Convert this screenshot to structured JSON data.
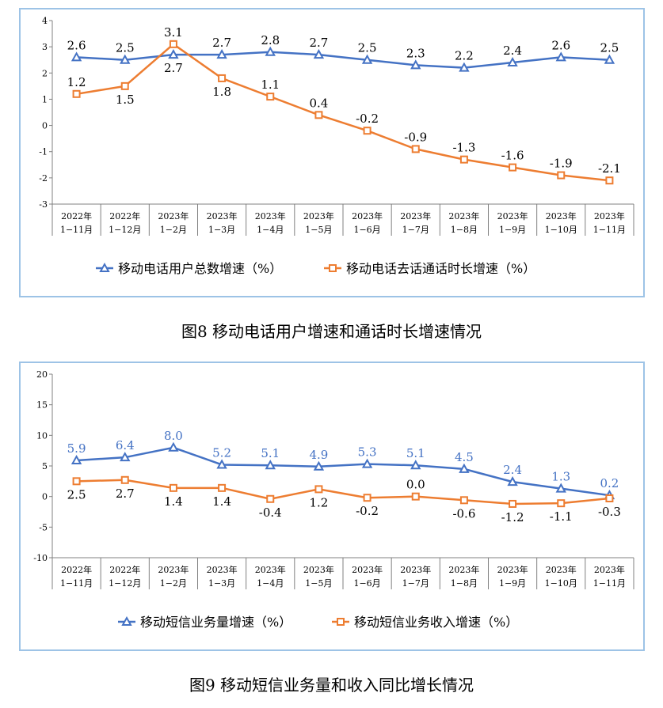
{
  "chart_data": [
    {
      "type": "line",
      "title": "图8 移动电话用户增速和通话时长增速情况",
      "categories": [
        [
          "2022年",
          "1−11月"
        ],
        [
          "2022年",
          "1−12月"
        ],
        [
          "2023年",
          "1−2月"
        ],
        [
          "2023年",
          "1−3月"
        ],
        [
          "2023年",
          "1−4月"
        ],
        [
          "2023年",
          "1−5月"
        ],
        [
          "2023年",
          "1−6月"
        ],
        [
          "2023年",
          "1−7月"
        ],
        [
          "2023年",
          "1−8月"
        ],
        [
          "2023年",
          "1−9月"
        ],
        [
          "2023年",
          "1−10月"
        ],
        [
          "2023年",
          "1−11月"
        ]
      ],
      "ylim": [
        -3,
        4
      ],
      "yticks": [
        4,
        3,
        2,
        1,
        0,
        -1,
        -2,
        -3
      ],
      "grid": false,
      "legend": "bottom",
      "series": [
        {
          "name": "移动电话用户总数增速（%）",
          "color": "#4472c4",
          "marker": "triangle",
          "values": [
            2.6,
            2.5,
            2.7,
            2.7,
            2.8,
            2.7,
            2.5,
            2.3,
            2.2,
            2.4,
            2.6,
            2.5
          ],
          "labels": [
            "2.6",
            "2.5",
            "2.7",
            "2.7",
            "2.8",
            "2.7",
            "2.5",
            "2.3",
            "2.2",
            "2.4",
            "2.6",
            "2.5"
          ],
          "label_color": "#000000"
        },
        {
          "name": "移动电话去话通话时长增速（%）",
          "color": "#ed7d31",
          "marker": "square",
          "values": [
            1.2,
            1.5,
            3.1,
            1.8,
            1.1,
            0.4,
            -0.2,
            -0.9,
            -1.3,
            -1.6,
            -1.9,
            -2.1
          ],
          "labels": [
            "1.2",
            "1.5",
            "3.1",
            "1.8",
            "1.1",
            "0.4",
            "-0.2",
            "-0.9",
            "-1.3",
            "-1.6",
            "-1.9",
            "-2.1"
          ],
          "label_color": "#000000"
        }
      ]
    },
    {
      "type": "line",
      "title": "图9 移动短信业务量和收入同比增长情况",
      "categories": [
        [
          "2022年",
          "1−11月"
        ],
        [
          "2022年",
          "1−12月"
        ],
        [
          "2023年",
          "1−2月"
        ],
        [
          "2023年",
          "1−3月"
        ],
        [
          "2023年",
          "1−4月"
        ],
        [
          "2023年",
          "1−5月"
        ],
        [
          "2023年",
          "1−6月"
        ],
        [
          "2023年",
          "1−7月"
        ],
        [
          "2023年",
          "1−8月"
        ],
        [
          "2023年",
          "1−9月"
        ],
        [
          "2023年",
          "1−10月"
        ],
        [
          "2023年",
          "1−11月"
        ]
      ],
      "ylim": [
        -10,
        20
      ],
      "yticks": [
        20,
        15,
        10,
        5,
        0,
        -5,
        -10
      ],
      "grid": false,
      "legend": "bottom",
      "series": [
        {
          "name": "移动短信业务量增速（%）",
          "color": "#4472c4",
          "marker": "triangle",
          "values": [
            5.9,
            6.4,
            8.0,
            5.2,
            5.1,
            4.9,
            5.3,
            5.1,
            4.5,
            2.4,
            1.3,
            0.2
          ],
          "labels": [
            "5.9",
            "6.4",
            "8.0",
            "5.2",
            "5.1",
            "4.9",
            "5.3",
            "5.1",
            "4.5",
            "2.4",
            "1.3",
            "0.2"
          ],
          "label_color": "#4472c4"
        },
        {
          "name": "移动短信业务收入增速（%）",
          "color": "#ed7d31",
          "marker": "square",
          "values": [
            2.5,
            2.7,
            1.4,
            1.4,
            -0.4,
            1.2,
            -0.2,
            0.0,
            -0.6,
            -1.2,
            -1.1,
            -0.3
          ],
          "labels": [
            "2.5",
            "2.7",
            "1.4",
            "1.4",
            "-0.4",
            "1.2",
            "-0.2",
            "0.0",
            "-0.6",
            "-1.2",
            "-1.1",
            "-0.3"
          ],
          "label_color": "#000000"
        }
      ]
    }
  ]
}
